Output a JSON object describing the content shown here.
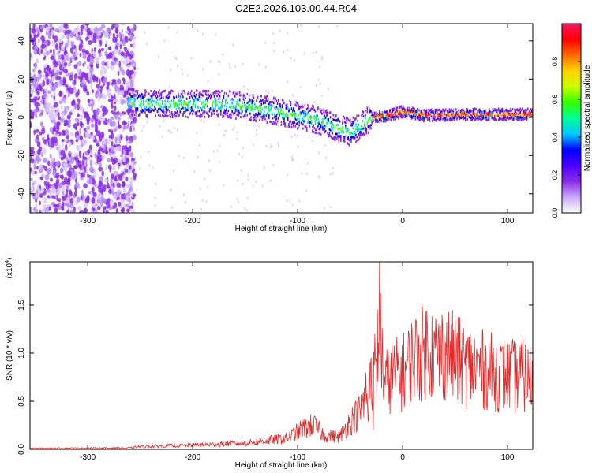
{
  "chart_data": [
    {
      "type": "heatmap",
      "title": "C2E2.2026.103.00.44.R04",
      "xlabel": "Height of straight line (km)",
      "ylabel": "Frequency (Hz)",
      "xlim": [
        -355,
        124
      ],
      "ylim": [
        -50,
        49
      ],
      "xticks": [
        -300,
        -200,
        -100,
        0,
        100
      ],
      "yticks": [
        -40,
        -20,
        0,
        20,
        40
      ],
      "colorbar": {
        "label": "Normalized spectral amplitude",
        "range": [
          0,
          1
        ],
        "ticks": [
          "0.0",
          "0.2",
          "0.4",
          "0.6",
          "0.8"
        ],
        "colors": [
          "#ffffff",
          "#c9a8ff",
          "#8a2be2",
          "#4b00ff",
          "#0000ff",
          "#00c8ff",
          "#00ff9a",
          "#32ff00",
          "#c8ff00",
          "#ffd400",
          "#ff6a00",
          "#ff0000",
          "#ff1464"
        ]
      },
      "ridge": {
        "x": [
          -262,
          -240,
          -200,
          -170,
          -140,
          -110,
          -85,
          -65,
          -50,
          -40,
          -30,
          -15,
          0,
          20,
          60,
          100,
          124
        ],
        "y": [
          8,
          7,
          7,
          7,
          5,
          2,
          -1,
          -5,
          -8,
          -4,
          0,
          1,
          3,
          1,
          1.5,
          1.5,
          1.5
        ]
      }
    },
    {
      "type": "line",
      "xlabel": "Height of straight line (km)",
      "ylabel": "SNR (10 * v/v)",
      "multiplier": "(x10",
      "multiplier_exp": "4",
      "multiplier_close": ")",
      "xlim": [
        -355,
        124
      ],
      "ylim": [
        0,
        1.95
      ],
      "xticks": [
        -300,
        -200,
        -100,
        0,
        100
      ],
      "yticks": [
        0,
        0.5,
        1,
        1.5
      ],
      "color": "#e52a2a",
      "envelope": {
        "x": [
          -355,
          -260,
          -250,
          -200,
          -150,
          -110,
          -95,
          -85,
          -75,
          -60,
          -50,
          -40,
          -35,
          -30,
          -25,
          -22,
          -18,
          -10,
          0,
          10,
          20,
          25,
          30,
          40,
          50,
          60,
          75,
          100,
          115,
          124
        ],
        "y": [
          0.015,
          0.02,
          0.04,
          0.06,
          0.09,
          0.16,
          0.3,
          0.35,
          0.2,
          0.18,
          0.4,
          0.55,
          0.8,
          0.95,
          1.2,
          1.85,
          0.95,
          1.05,
          1.1,
          1.3,
          1.4,
          1.5,
          1.35,
          1.4,
          1.3,
          1.2,
          1.15,
          1.05,
          1.05,
          1.0
        ]
      }
    }
  ]
}
